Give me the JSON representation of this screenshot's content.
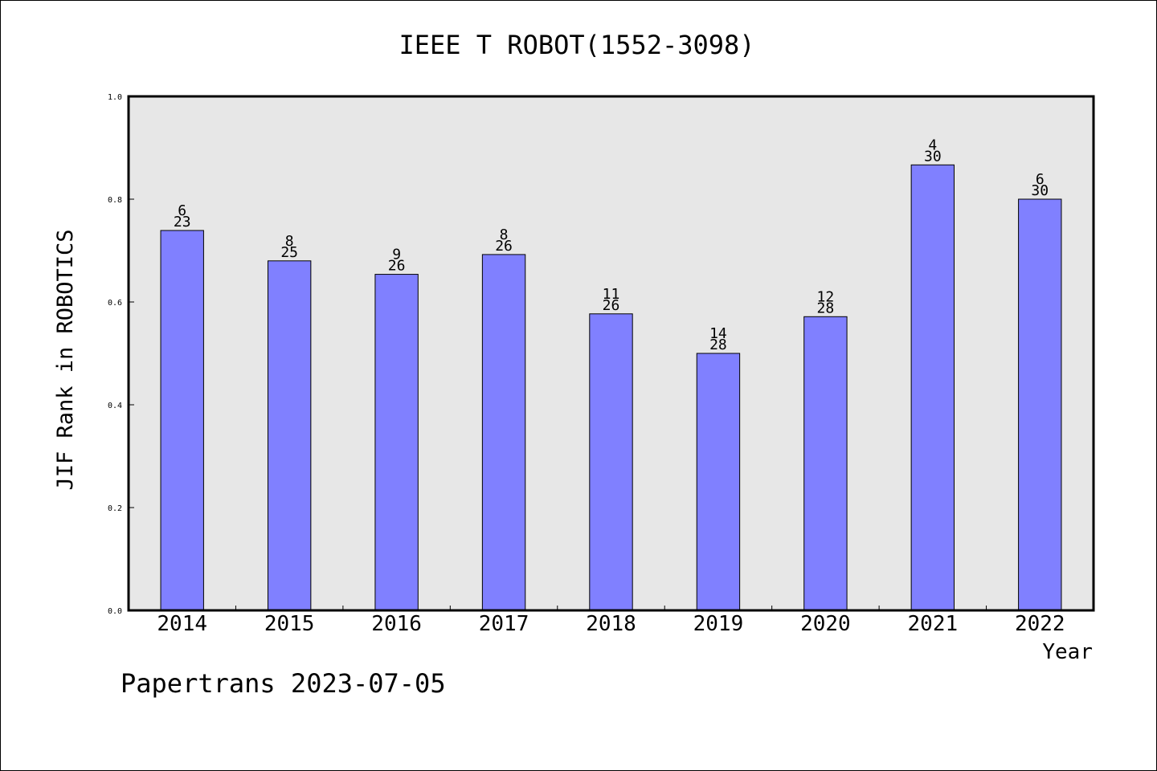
{
  "chart_data": {
    "type": "bar",
    "title": "IEEE T ROBOT(1552-3098)",
    "xlabel": "Year",
    "ylabel": "JIF Rank in ROBOTICS",
    "ylim": [
      0,
      1.0
    ],
    "yticks": [
      "0.0",
      "0.2",
      "0.4",
      "0.6",
      "0.8",
      "1.0"
    ],
    "grid": false,
    "categories": [
      "2014",
      "2015",
      "2016",
      "2017",
      "2018",
      "2019",
      "2020",
      "2021",
      "2022"
    ],
    "values": [
      0.7391,
      0.68,
      0.6538,
      0.6923,
      0.5769,
      0.5,
      0.5714,
      0.8667,
      0.8
    ],
    "ranks": [
      "6",
      "8",
      "9",
      "8",
      "11",
      "14",
      "12",
      "4",
      "6"
    ],
    "totals": [
      "23",
      "25",
      "26",
      "26",
      "26",
      "28",
      "28",
      "30",
      "30"
    ],
    "colors": {
      "bar": "#8080ff",
      "plot_background": "#e7e7e7",
      "axis": "#000000"
    }
  },
  "footer": {
    "text": "Papertrans 2023-07-05"
  }
}
